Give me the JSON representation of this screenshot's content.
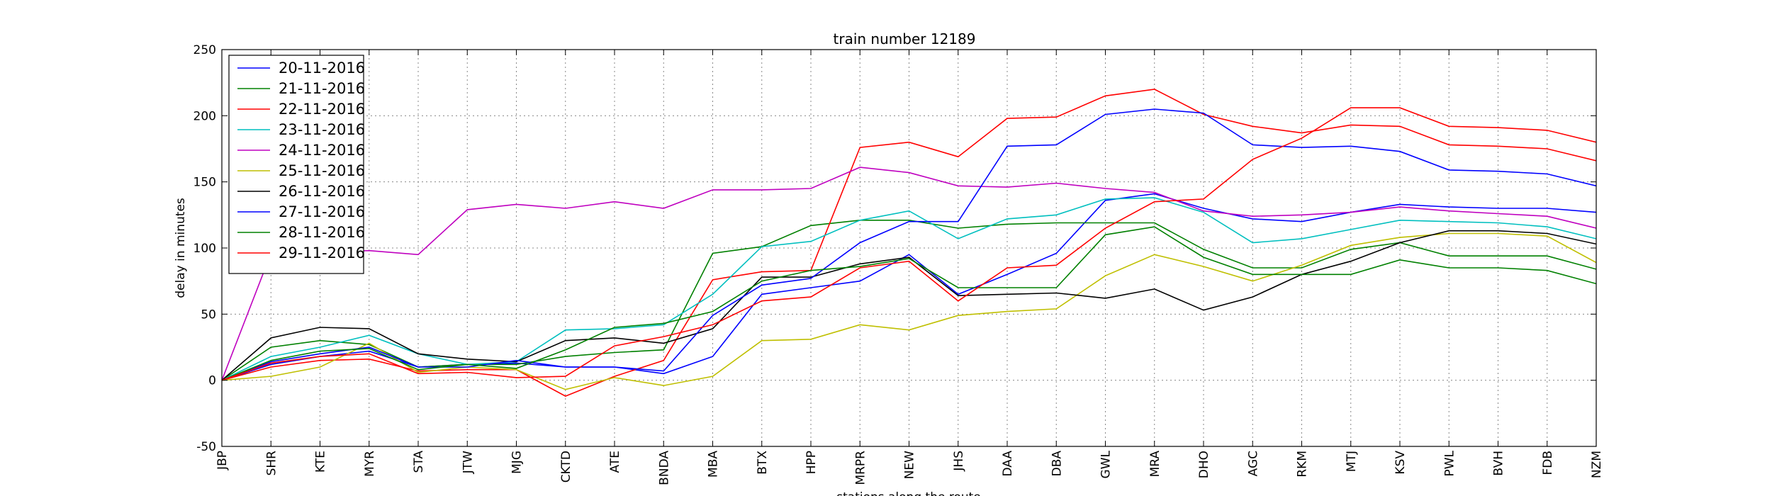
{
  "chart_data": {
    "type": "line",
    "title": "train number 12189",
    "xlabel": "stations along the route",
    "ylabel": "delay in minutes",
    "ylim": [
      -50,
      250
    ],
    "yticks": [
      -50,
      0,
      50,
      100,
      150,
      200,
      250
    ],
    "grid": true,
    "legend_position": "top-left",
    "categories": [
      "JBP",
      "SHR",
      "KTE",
      "MYR",
      "STA",
      "JTW",
      "MJG",
      "CKTD",
      "ATE",
      "BNDA",
      "MBA",
      "BTX",
      "HPP",
      "MRPR",
      "NEW",
      "JHS",
      "DAA",
      "DBA",
      "GWL",
      "MRA",
      "DHO",
      "AGC",
      "RKM",
      "MTJ",
      "KSV",
      "PWL",
      "BVH",
      "FDB",
      "NZM"
    ],
    "series": [
      {
        "name": "20-11-2016",
        "color": "#0000ff",
        "values": [
          0,
          12,
          18,
          22,
          10,
          12,
          13,
          10,
          10,
          5,
          18,
          65,
          70,
          75,
          95,
          65,
          80,
          96,
          136,
          141,
          130,
          122,
          120,
          127,
          133,
          131,
          130,
          130,
          127
        ]
      },
      {
        "name": "21-11-2016",
        "color": "#008000",
        "values": [
          0,
          25,
          30,
          27,
          10,
          12,
          12,
          18,
          21,
          23,
          96,
          101,
          117,
          121,
          121,
          115,
          118,
          119,
          119,
          119,
          99,
          85,
          85,
          99,
          104,
          94,
          94,
          94,
          84
        ]
      },
      {
        "name": "22-11-2016",
        "color": "#ff0000",
        "values": [
          0,
          10,
          15,
          16,
          7,
          8,
          8,
          -12,
          3,
          15,
          76,
          82,
          83,
          176,
          180,
          169,
          198,
          199,
          215,
          220,
          201,
          192,
          187,
          193,
          192,
          178,
          177,
          175,
          166
        ]
      },
      {
        "name": "23-11-2016",
        "color": "#00bfbf",
        "values": [
          0,
          18,
          25,
          34,
          20,
          12,
          14,
          38,
          39,
          42,
          65,
          101,
          105,
          121,
          128,
          107,
          122,
          125,
          137,
          138,
          127,
          104,
          107,
          114,
          121,
          120,
          119,
          116,
          107
        ]
      },
      {
        "name": "24-11-2016",
        "color": "#bf00bf",
        "values": [
          0,
          96,
          97,
          98,
          95,
          129,
          133,
          130,
          135,
          130,
          144,
          144,
          145,
          161,
          157,
          147,
          146,
          149,
          145,
          142,
          128,
          124,
          125,
          127,
          131,
          128,
          126,
          124,
          115
        ]
      },
      {
        "name": "25-11-2016",
        "color": "#bfbf00",
        "values": [
          0,
          3,
          10,
          28,
          6,
          10,
          8,
          -7,
          2,
          -4,
          3,
          30,
          31,
          42,
          38,
          49,
          52,
          54,
          79,
          95,
          86,
          75,
          87,
          102,
          108,
          111,
          111,
          109,
          89
        ]
      },
      {
        "name": "26-11-2016",
        "color": "#000000",
        "values": [
          0,
          32,
          40,
          39,
          20,
          16,
          14,
          30,
          32,
          28,
          39,
          78,
          78,
          88,
          93,
          64,
          65,
          66,
          62,
          69,
          53,
          63,
          80,
          90,
          104,
          113,
          113,
          111,
          103
        ]
      },
      {
        "name": "27-11-2016",
        "color": "#0000ff",
        "values": [
          0,
          14,
          20,
          25,
          10,
          10,
          15,
          10,
          10,
          7,
          49,
          72,
          77,
          104,
          120,
          120,
          177,
          178,
          201,
          205,
          202,
          178,
          176,
          177,
          173,
          159,
          158,
          156,
          147
        ]
      },
      {
        "name": "28-11-2016",
        "color": "#008000",
        "values": [
          0,
          15,
          22,
          24,
          8,
          12,
          9,
          23,
          40,
          43,
          52,
          75,
          83,
          86,
          92,
          70,
          70,
          70,
          110,
          116,
          93,
          80,
          80,
          80,
          91,
          85,
          85,
          83,
          73
        ]
      },
      {
        "name": "29-11-2016",
        "color": "#ff0000",
        "values": [
          0,
          13,
          18,
          20,
          5,
          6,
          2,
          3,
          26,
          33,
          42,
          60,
          63,
          85,
          90,
          60,
          85,
          87,
          115,
          135,
          137,
          167,
          183,
          206,
          206,
          192,
          191,
          189,
          180
        ]
      }
    ]
  }
}
